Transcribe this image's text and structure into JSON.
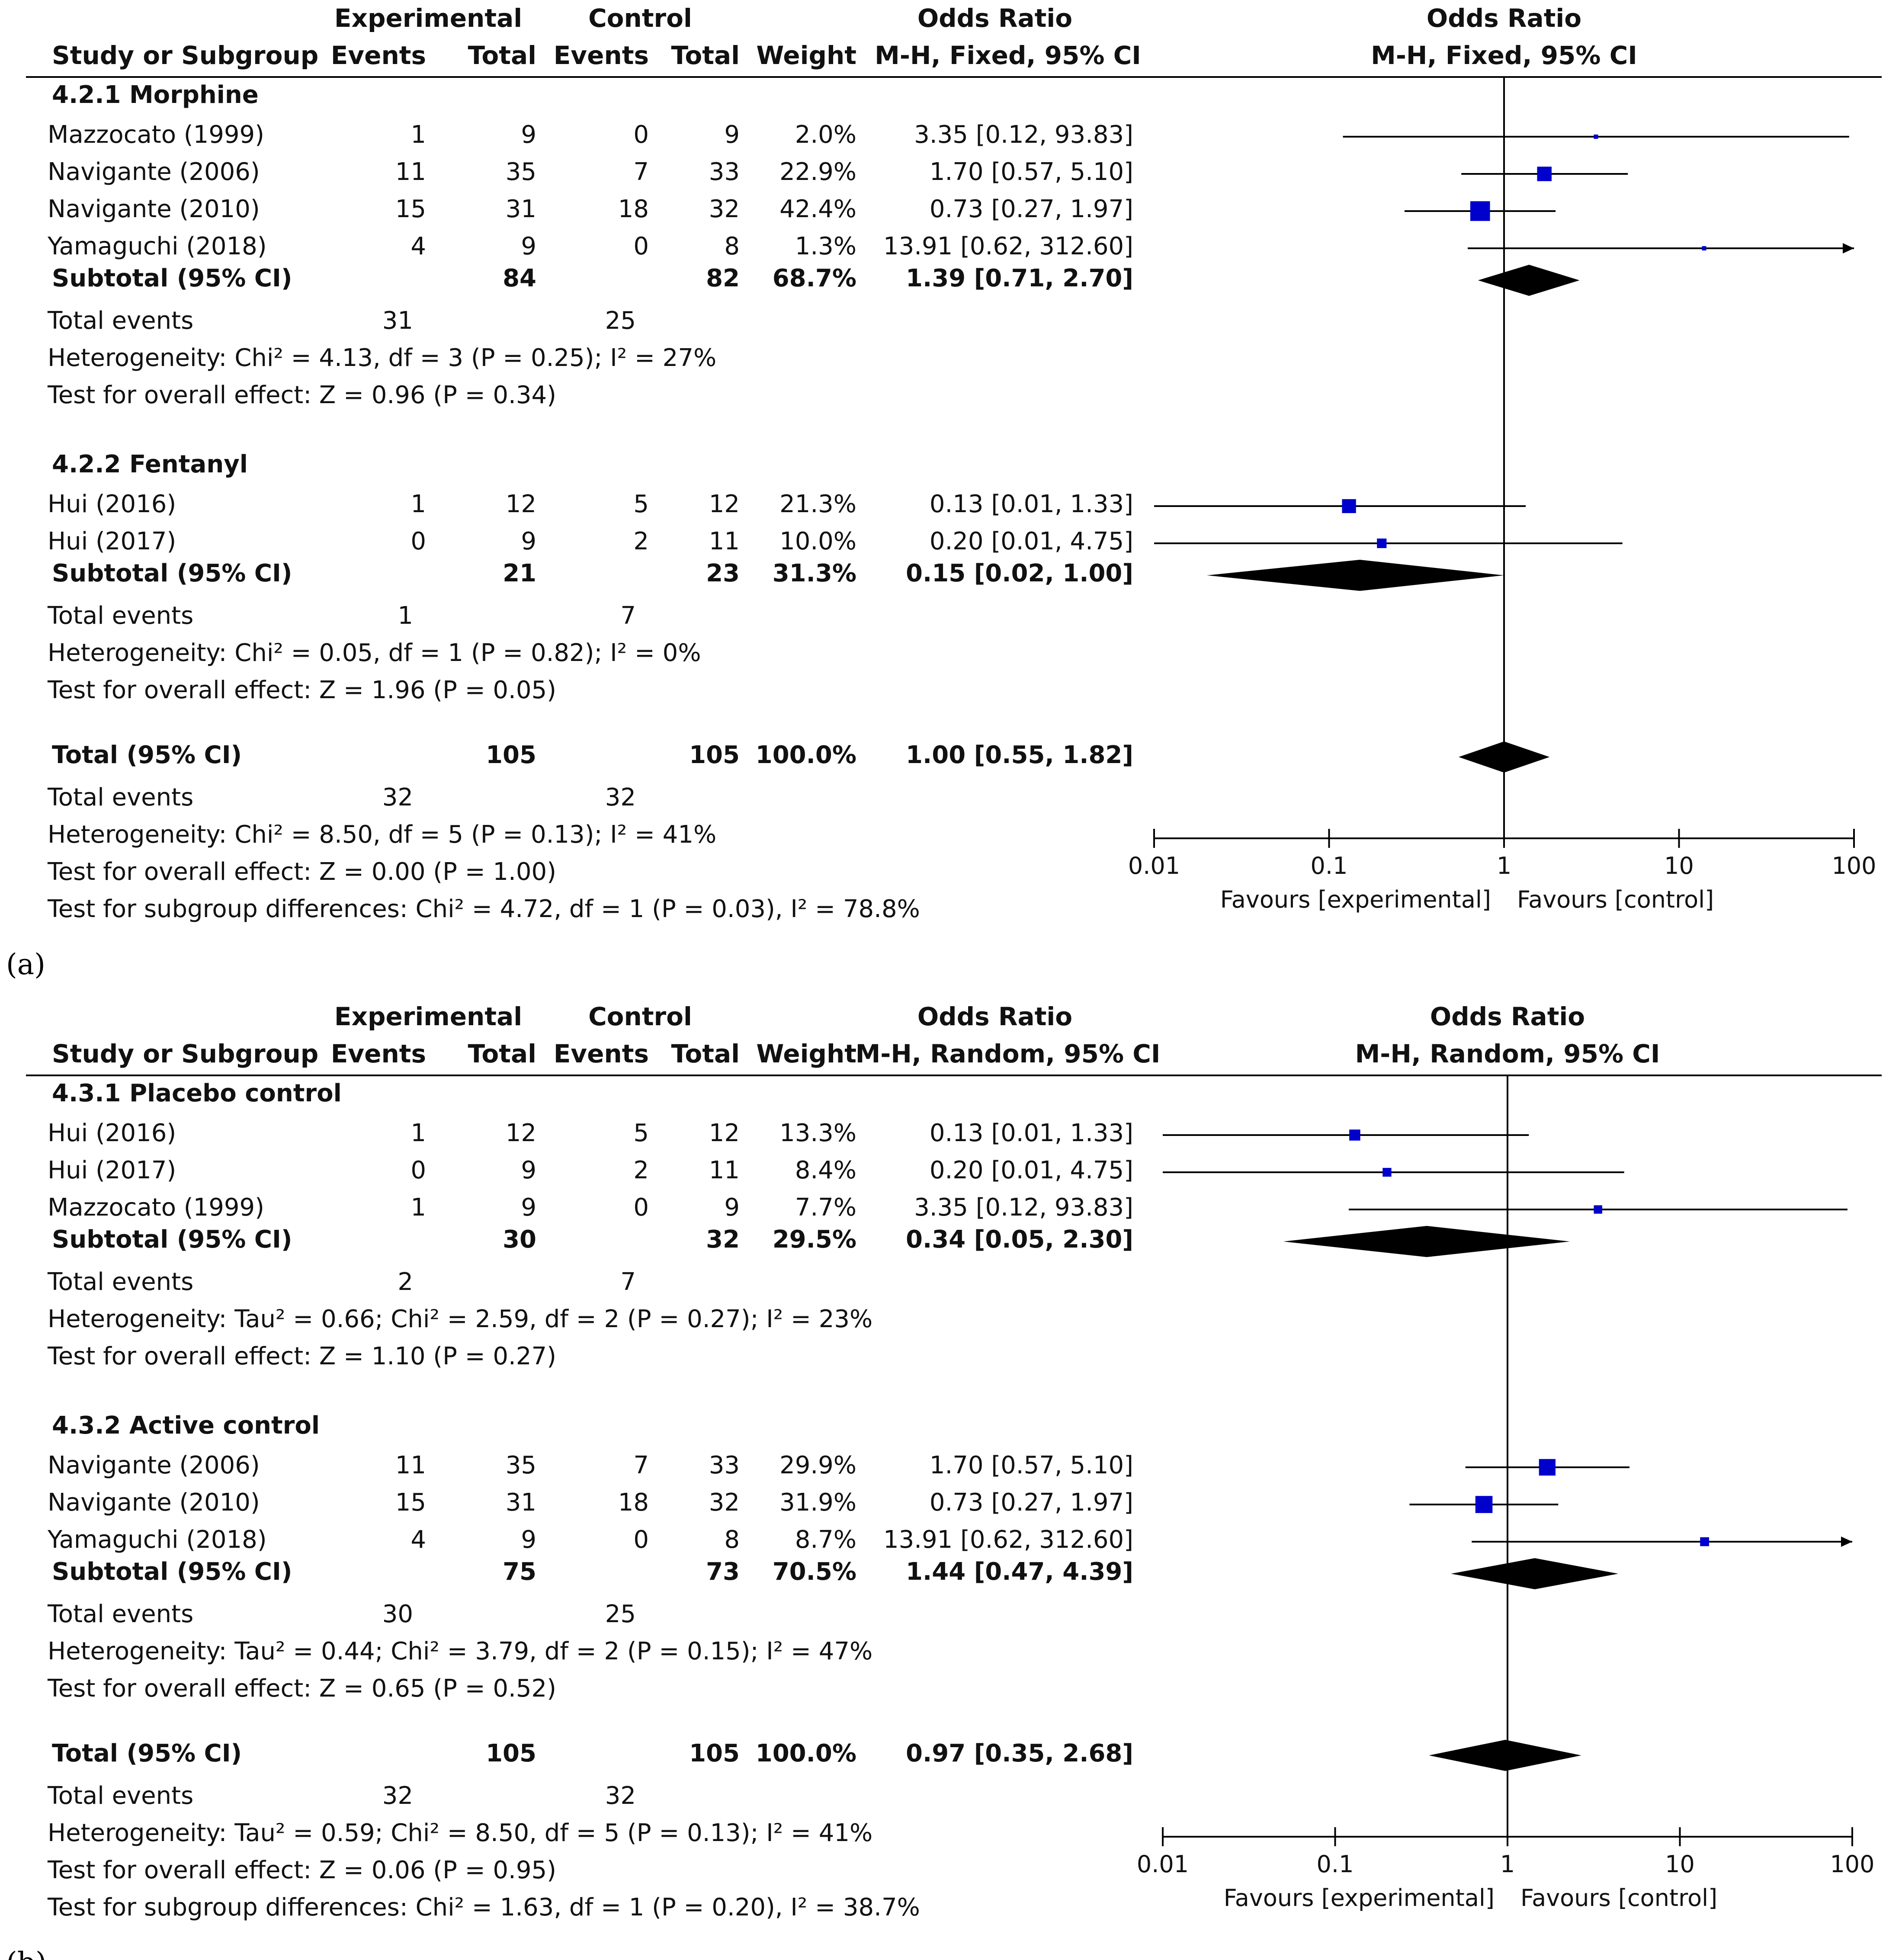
{
  "chart_data": [
    {
      "type": "forest",
      "panel_label": "(a)",
      "header": {
        "experimental": "Experimental",
        "control": "Control",
        "odds_ratio": "Odds Ratio",
        "study": "Study or Subgroup",
        "events": "Events",
        "total": "Total",
        "weight": "Weight",
        "method": "M-H, Fixed, 95% CI"
      },
      "subgroups": [
        {
          "title": "4.2.1 Morphine",
          "studies": [
            {
              "name": "Mazzocato (1999)",
              "exp_events": "1",
              "exp_total": "9",
              "ctl_events": "0",
              "ctl_total": "9",
              "weight": "2.0%",
              "ci_text": "3.35 [0.12, 93.83]",
              "or": 3.35,
              "lo": 0.12,
              "hi": 93.83
            },
            {
              "name": "Navigante (2006)",
              "exp_events": "11",
              "exp_total": "35",
              "ctl_events": "7",
              "ctl_total": "33",
              "weight": "22.9%",
              "ci_text": "1.70 [0.57, 5.10]",
              "or": 1.7,
              "lo": 0.57,
              "hi": 5.1
            },
            {
              "name": "Navigante (2010)",
              "exp_events": "15",
              "exp_total": "31",
              "ctl_events": "18",
              "ctl_total": "32",
              "weight": "42.4%",
              "ci_text": "0.73 [0.27, 1.97]",
              "or": 0.73,
              "lo": 0.27,
              "hi": 1.97
            },
            {
              "name": "Yamaguchi (2018)",
              "exp_events": "4",
              "exp_total": "9",
              "ctl_events": "0",
              "ctl_total": "8",
              "weight": "1.3%",
              "ci_text": "13.91 [0.62, 312.60]",
              "or": 13.91,
              "lo": 0.62,
              "hi": 312.6
            }
          ],
          "subtotal": {
            "label": "Subtotal (95% CI)",
            "exp_total": "84",
            "ctl_total": "82",
            "weight": "68.7%",
            "ci_text": "1.39 [0.71, 2.70]",
            "or": 1.39,
            "lo": 0.71,
            "hi": 2.7
          },
          "events": {
            "label": "Total events",
            "exp": "31",
            "ctl": "25"
          },
          "heterogeneity": "Heterogeneity: Chi² = 4.13, df = 3 (P = 0.25); I² = 27%",
          "overall": "Test for overall effect: Z = 0.96 (P = 0.34)"
        },
        {
          "title": "4.2.2 Fentanyl",
          "studies": [
            {
              "name": "Hui (2016)",
              "exp_events": "1",
              "exp_total": "12",
              "ctl_events": "5",
              "ctl_total": "12",
              "weight": "21.3%",
              "ci_text": "0.13 [0.01, 1.33]",
              "or": 0.13,
              "lo": 0.01,
              "hi": 1.33
            },
            {
              "name": "Hui (2017)",
              "exp_events": "0",
              "exp_total": "9",
              "ctl_events": "2",
              "ctl_total": "11",
              "weight": "10.0%",
              "ci_text": "0.20 [0.01, 4.75]",
              "or": 0.2,
              "lo": 0.01,
              "hi": 4.75
            }
          ],
          "subtotal": {
            "label": "Subtotal (95% CI)",
            "exp_total": "21",
            "ctl_total": "23",
            "weight": "31.3%",
            "ci_text": "0.15 [0.02, 1.00]",
            "or": 0.15,
            "lo": 0.02,
            "hi": 1.0
          },
          "events": {
            "label": "Total events",
            "exp": "1",
            "ctl": "7"
          },
          "heterogeneity": "Heterogeneity: Chi² = 0.05, df = 1 (P = 0.82); I² = 0%",
          "overall": "Test for overall effect: Z = 1.96 (P = 0.05)"
        }
      ],
      "total": {
        "label": "Total (95% CI)",
        "exp_total": "105",
        "ctl_total": "105",
        "weight": "100.0%",
        "ci_text": "1.00 [0.55, 1.82]",
        "or": 1.0,
        "lo": 0.55,
        "hi": 1.82
      },
      "total_events": {
        "label": "Total events",
        "exp": "32",
        "ctl": "32"
      },
      "heterogeneity": "Heterogeneity: Chi² = 8.50, df = 5 (P = 0.13); I² = 41%",
      "overall": "Test for overall effect: Z = 0.00 (P = 1.00)",
      "subgroup_diff": "Test for subgroup differences: Chi² = 4.72, df = 1 (P = 0.03), I² = 78.8%",
      "axis": {
        "ticks": [
          0.01,
          0.1,
          1,
          10,
          100
        ],
        "tick_labels": [
          "0.01",
          "0.1",
          "1",
          "10",
          "100"
        ],
        "xlim": [
          0.01,
          100
        ],
        "scale": "log",
        "favours_left": "Favours [experimental]",
        "favours_right": "Favours [control]"
      }
    },
    {
      "type": "forest",
      "panel_label": "(b)",
      "header": {
        "experimental": "Experimental",
        "control": "Control",
        "odds_ratio": "Odds Ratio",
        "study": "Study or Subgroup",
        "events": "Events",
        "total": "Total",
        "weight": "Weight",
        "method": "M-H, Random, 95% CI"
      },
      "subgroups": [
        {
          "title": "4.3.1 Placebo control",
          "studies": [
            {
              "name": "Hui (2016)",
              "exp_events": "1",
              "exp_total": "12",
              "ctl_events": "5",
              "ctl_total": "12",
              "weight": "13.3%",
              "ci_text": "0.13 [0.01, 1.33]",
              "or": 0.13,
              "lo": 0.01,
              "hi": 1.33
            },
            {
              "name": "Hui (2017)",
              "exp_events": "0",
              "exp_total": "9",
              "ctl_events": "2",
              "ctl_total": "11",
              "weight": "8.4%",
              "ci_text": "0.20 [0.01, 4.75]",
              "or": 0.2,
              "lo": 0.01,
              "hi": 4.75
            },
            {
              "name": "Mazzocato (1999)",
              "exp_events": "1",
              "exp_total": "9",
              "ctl_events": "0",
              "ctl_total": "9",
              "weight": "7.7%",
              "ci_text": "3.35 [0.12, 93.83]",
              "or": 3.35,
              "lo": 0.12,
              "hi": 93.83
            }
          ],
          "subtotal": {
            "label": "Subtotal (95% CI)",
            "exp_total": "30",
            "ctl_total": "32",
            "weight": "29.5%",
            "ci_text": "0.34 [0.05, 2.30]",
            "or": 0.34,
            "lo": 0.05,
            "hi": 2.3
          },
          "events": {
            "label": "Total events",
            "exp": "2",
            "ctl": "7"
          },
          "heterogeneity": "Heterogeneity: Tau² = 0.66; Chi² = 2.59, df = 2 (P = 0.27); I² = 23%",
          "overall": "Test for overall effect: Z = 1.10 (P = 0.27)"
        },
        {
          "title": "4.3.2 Active control",
          "studies": [
            {
              "name": "Navigante (2006)",
              "exp_events": "11",
              "exp_total": "35",
              "ctl_events": "7",
              "ctl_total": "33",
              "weight": "29.9%",
              "ci_text": "1.70 [0.57, 5.10]",
              "or": 1.7,
              "lo": 0.57,
              "hi": 5.1
            },
            {
              "name": "Navigante (2010)",
              "exp_events": "15",
              "exp_total": "31",
              "ctl_events": "18",
              "ctl_total": "32",
              "weight": "31.9%",
              "ci_text": "0.73 [0.27, 1.97]",
              "or": 0.73,
              "lo": 0.27,
              "hi": 1.97
            },
            {
              "name": "Yamaguchi (2018)",
              "exp_events": "4",
              "exp_total": "9",
              "ctl_events": "0",
              "ctl_total": "8",
              "weight": "8.7%",
              "ci_text": "13.91 [0.62, 312.60]",
              "or": 13.91,
              "lo": 0.62,
              "hi": 312.6
            }
          ],
          "subtotal": {
            "label": "Subtotal (95% CI)",
            "exp_total": "75",
            "ctl_total": "73",
            "weight": "70.5%",
            "ci_text": "1.44 [0.47, 4.39]",
            "or": 1.44,
            "lo": 0.47,
            "hi": 4.39
          },
          "events": {
            "label": "Total events",
            "exp": "30",
            "ctl": "25"
          },
          "heterogeneity": "Heterogeneity: Tau² = 0.44; Chi² = 3.79, df = 2 (P = 0.15); I² = 47%",
          "overall": "Test for overall effect: Z = 0.65 (P = 0.52)"
        }
      ],
      "total": {
        "label": "Total (95% CI)",
        "exp_total": "105",
        "ctl_total": "105",
        "weight": "100.0%",
        "ci_text": "0.97 [0.35, 2.68]",
        "or": 0.97,
        "lo": 0.35,
        "hi": 2.68
      },
      "total_events": {
        "label": "Total events",
        "exp": "32",
        "ctl": "32"
      },
      "heterogeneity": "Heterogeneity: Tau² = 0.59; Chi² = 8.50, df = 5 (P = 0.13); I² = 41%",
      "overall": "Test for overall effect: Z = 0.06 (P = 0.95)",
      "subgroup_diff": "Test for subgroup differences: Chi² = 1.63, df = 1 (P = 0.20), I² = 38.7%",
      "axis": {
        "ticks": [
          0.01,
          0.1,
          1,
          10,
          100
        ],
        "tick_labels": [
          "0.01",
          "0.1",
          "1",
          "10",
          "100"
        ],
        "xlim": [
          0.01,
          100
        ],
        "scale": "log",
        "favours_left": "Favours [experimental]",
        "favours_right": "Favours [control]"
      }
    }
  ],
  "colors": {
    "marker": "#0000cc",
    "diamond": "#000000",
    "line": "#000000",
    "text": "#111111"
  }
}
